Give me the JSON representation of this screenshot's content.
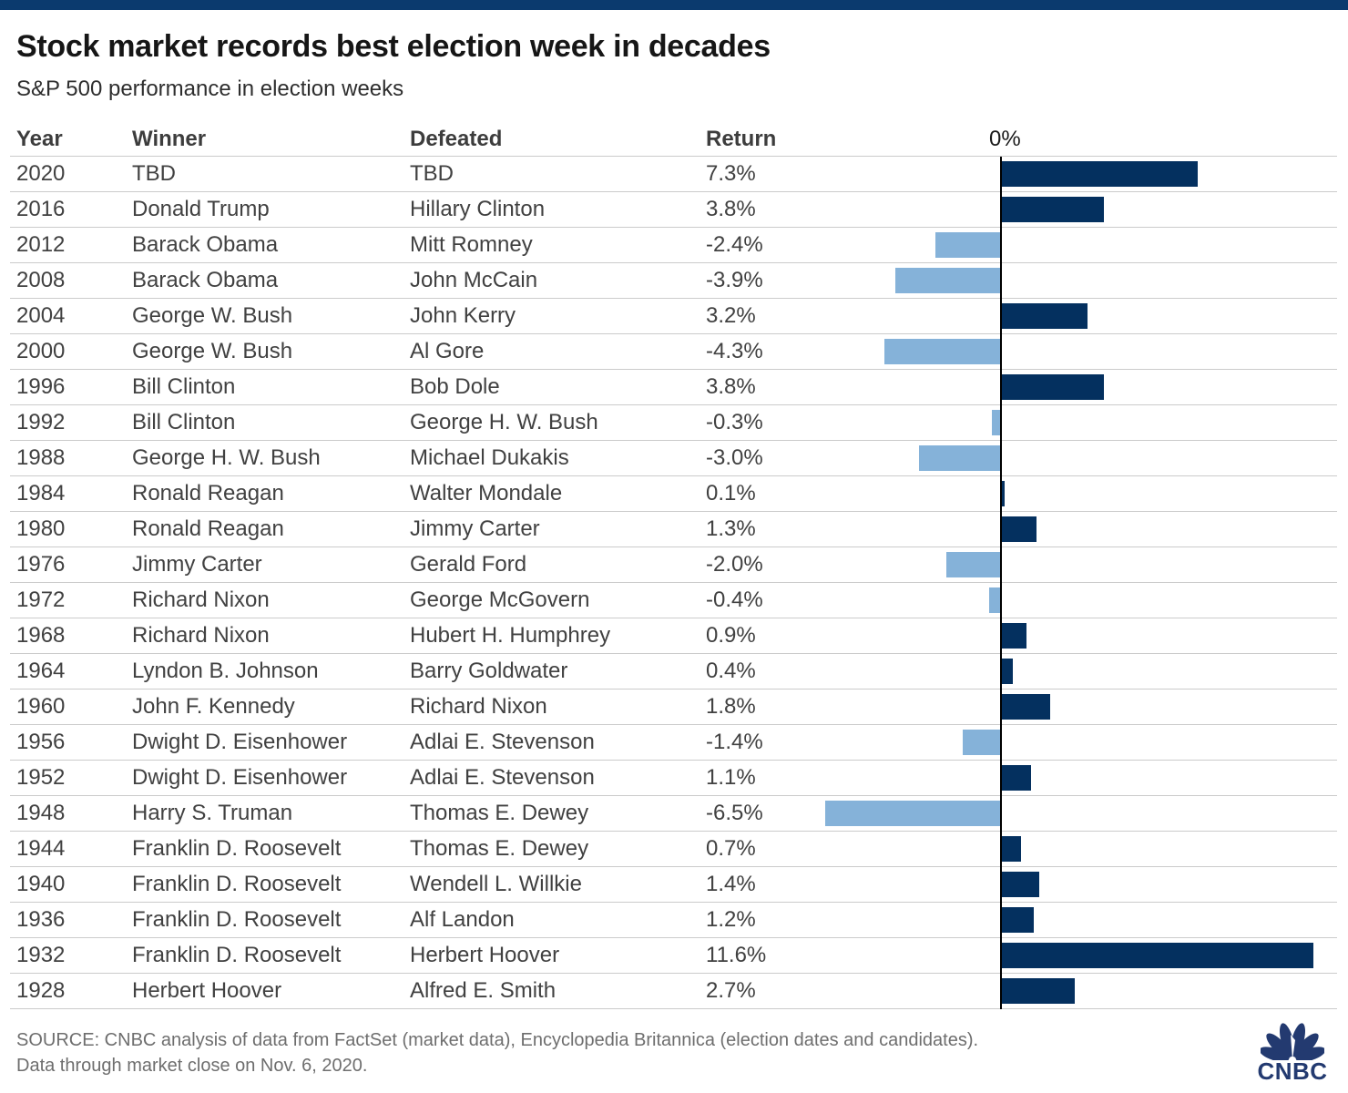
{
  "page": {
    "title": "Stock market records best election week in decades",
    "subtitle": "S&P 500 performance in election weeks",
    "source_line1": "SOURCE: CNBC analysis of data from FactSet (market data), Encyclopedia Britannica (election dates and candidates).",
    "source_line2": "Data through market close on Nov. 6, 2020.",
    "logo_text": "CNBC"
  },
  "colors": {
    "banner": "#0b3a6e",
    "positive_bar": "#04305f",
    "negative_bar": "#85b2d9",
    "axis": "#000000",
    "gridline": "#cbcbcb",
    "logo": "#233a70"
  },
  "table": {
    "headers": {
      "year": "Year",
      "winner": "Winner",
      "defeated": "Defeated",
      "return": "Return",
      "zero": "0%"
    },
    "rows": [
      {
        "year": "2020",
        "winner": "TBD",
        "defeated": "TBD",
        "return_label": "7.3%",
        "value": 7.3
      },
      {
        "year": "2016",
        "winner": "Donald Trump",
        "defeated": "Hillary Clinton",
        "return_label": "3.8%",
        "value": 3.8
      },
      {
        "year": "2012",
        "winner": "Barack Obama",
        "defeated": "Mitt Romney",
        "return_label": "-2.4%",
        "value": -2.4
      },
      {
        "year": "2008",
        "winner": "Barack Obama",
        "defeated": "John McCain",
        "return_label": "-3.9%",
        "value": -3.9
      },
      {
        "year": "2004",
        "winner": "George W. Bush",
        "defeated": "John Kerry",
        "return_label": "3.2%",
        "value": 3.2
      },
      {
        "year": "2000",
        "winner": "George W. Bush",
        "defeated": "Al Gore",
        "return_label": "-4.3%",
        "value": -4.3
      },
      {
        "year": "1996",
        "winner": "Bill Clinton",
        "defeated": "Bob Dole",
        "return_label": "3.8%",
        "value": 3.8
      },
      {
        "year": "1992",
        "winner": "Bill Clinton",
        "defeated": "George H. W. Bush",
        "return_label": "-0.3%",
        "value": -0.3
      },
      {
        "year": "1988",
        "winner": "George H. W. Bush",
        "defeated": "Michael Dukakis",
        "return_label": "-3.0%",
        "value": -3.0
      },
      {
        "year": "1984",
        "winner": "Ronald Reagan",
        "defeated": "Walter Mondale",
        "return_label": "0.1%",
        "value": 0.1
      },
      {
        "year": "1980",
        "winner": "Ronald Reagan",
        "defeated": "Jimmy Carter",
        "return_label": "1.3%",
        "value": 1.3
      },
      {
        "year": "1976",
        "winner": "Jimmy Carter",
        "defeated": "Gerald Ford",
        "return_label": "-2.0%",
        "value": -2.0
      },
      {
        "year": "1972",
        "winner": "Richard Nixon",
        "defeated": "George McGovern",
        "return_label": "-0.4%",
        "value": -0.4
      },
      {
        "year": "1968",
        "winner": "Richard Nixon",
        "defeated": "Hubert H. Humphrey",
        "return_label": "0.9%",
        "value": 0.9
      },
      {
        "year": "1964",
        "winner": "Lyndon B. Johnson",
        "defeated": "Barry Goldwater",
        "return_label": "0.4%",
        "value": 0.4
      },
      {
        "year": "1960",
        "winner": "John F. Kennedy",
        "defeated": "Richard Nixon",
        "return_label": "1.8%",
        "value": 1.8
      },
      {
        "year": "1956",
        "winner": "Dwight D. Eisenhower",
        "defeated": "Adlai E. Stevenson",
        "return_label": "-1.4%",
        "value": -1.4
      },
      {
        "year": "1952",
        "winner": "Dwight D. Eisenhower",
        "defeated": "Adlai E. Stevenson",
        "return_label": "1.1%",
        "value": 1.1
      },
      {
        "year": "1948",
        "winner": "Harry S. Truman",
        "defeated": "Thomas E. Dewey",
        "return_label": "-6.5%",
        "value": -6.5
      },
      {
        "year": "1944",
        "winner": "Franklin D. Roosevelt",
        "defeated": "Thomas E. Dewey",
        "return_label": "0.7%",
        "value": 0.7
      },
      {
        "year": "1940",
        "winner": "Franklin D. Roosevelt",
        "defeated": "Wendell L. Willkie",
        "return_label": "1.4%",
        "value": 1.4
      },
      {
        "year": "1936",
        "winner": "Franklin D. Roosevelt",
        "defeated": "Alf Landon",
        "return_label": "1.2%",
        "value": 1.2
      },
      {
        "year": "1932",
        "winner": "Franklin D. Roosevelt",
        "defeated": "Herbert Hoover",
        "return_label": "11.6%",
        "value": 11.6
      },
      {
        "year": "1928",
        "winner": "Herbert Hoover",
        "defeated": "Alfred E. Smith",
        "return_label": "2.7%",
        "value": 2.7
      }
    ]
  },
  "chart_data": {
    "type": "bar",
    "orientation": "horizontal",
    "title": "Stock market records best election week in decades",
    "subtitle": "S&P 500 performance in election weeks",
    "categories": [
      "2020",
      "2016",
      "2012",
      "2008",
      "2004",
      "2000",
      "1996",
      "1992",
      "1988",
      "1984",
      "1980",
      "1976",
      "1972",
      "1968",
      "1964",
      "1960",
      "1956",
      "1952",
      "1948",
      "1944",
      "1940",
      "1936",
      "1932",
      "1928"
    ],
    "values": [
      7.3,
      3.8,
      -2.4,
      -3.9,
      3.2,
      -4.3,
      3.8,
      -0.3,
      -3.0,
      0.1,
      1.3,
      -2.0,
      -0.4,
      0.9,
      0.4,
      1.8,
      -1.4,
      1.1,
      -6.5,
      0.7,
      1.4,
      1.2,
      11.6,
      2.7
    ],
    "value_unit": "%",
    "axis_tick_labels": [
      "0%"
    ],
    "xlim": [
      -7,
      12.5
    ],
    "grid": "horizontal-row-separators",
    "legend": "none",
    "positive_color": "#04305f",
    "negative_color": "#85b2d9"
  }
}
